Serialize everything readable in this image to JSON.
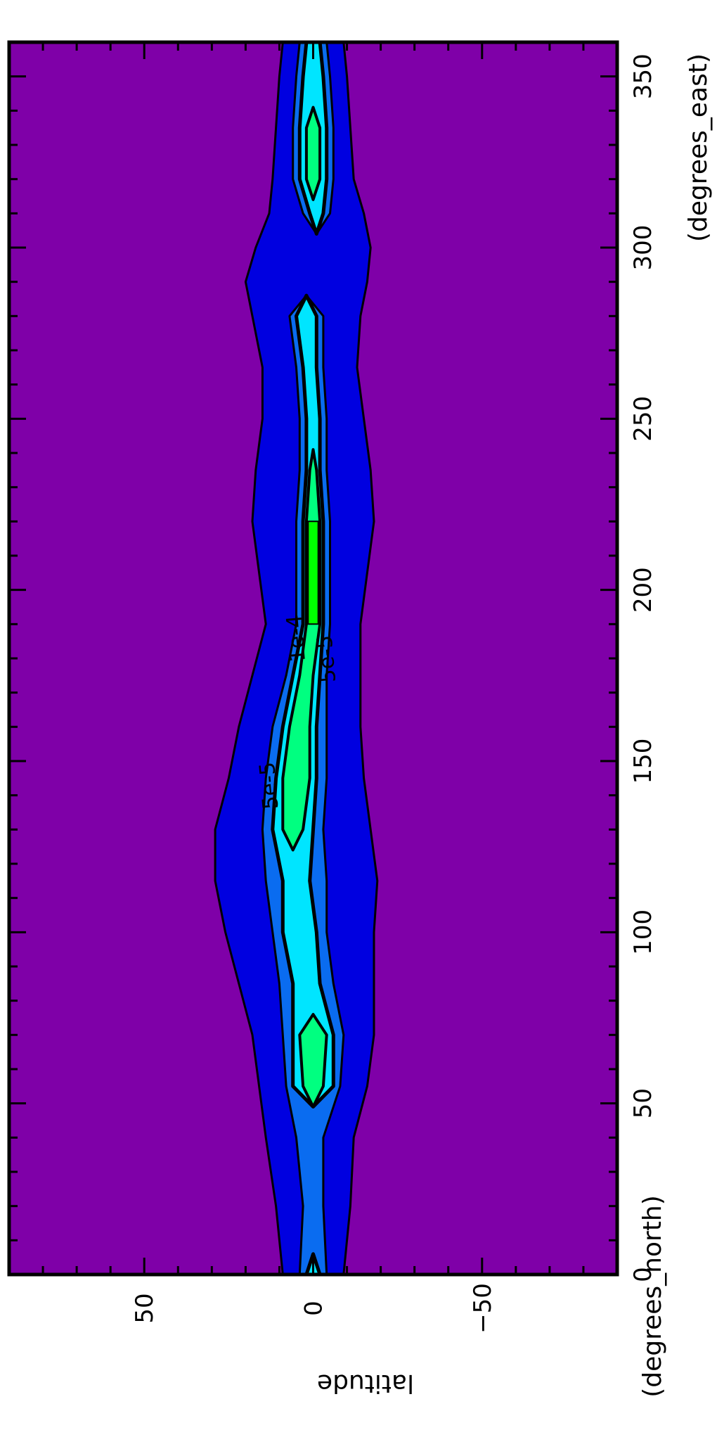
{
  "chart_data": {
    "type": "heatmap",
    "subtype": "filled-contour",
    "orientation": "rotated-90-clockwise",
    "x_axis": {
      "label": "latitude",
      "units": "(degrees_north)",
      "range": [
        -90,
        90
      ],
      "ticks": [
        50,
        0,
        -50
      ],
      "tick_labels": [
        "50",
        "0",
        "−50"
      ]
    },
    "y_axis": {
      "label": "",
      "units": "(degrees_east)",
      "range": [
        0,
        360
      ],
      "ticks": [
        0,
        50,
        100,
        150,
        200,
        250,
        300,
        350
      ],
      "tick_labels": [
        "0",
        "50",
        "100",
        "150",
        "200",
        "250",
        "300",
        "350"
      ]
    },
    "contour_levels": [
      "1e-5",
      "5e-5",
      "1e-4"
    ],
    "contour_labels": [
      "5e-5",
      "1e-4",
      "5e-5"
    ],
    "fill_colors": [
      "#7f00a8",
      "#0000e0",
      "#0a6cf0",
      "#00e5ff",
      "#00ff80",
      "#00ff00"
    ],
    "colors": {
      "background_field": "#7f00a8",
      "low": "#0000e0",
      "mid_low": "#0a6cf0",
      "mid": "#00e5ff",
      "mid_high": "#00ff80",
      "high": "#00ff00",
      "contour_line": "#000000"
    },
    "series": [
      {
        "name": "",
        "lon": [
          0,
          20,
          40,
          55,
          70,
          85,
          100,
          115,
          130,
          145,
          160,
          175,
          190,
          205,
          220,
          235,
          250,
          265,
          280,
          290,
          300,
          310,
          320,
          335,
          350,
          360
        ],
        "center_lat": [
          0,
          0,
          1,
          0,
          0,
          2,
          4,
          5,
          6,
          5,
          4,
          2,
          0,
          0,
          0,
          0,
          0,
          1,
          2,
          2,
          0,
          -1,
          0,
          0,
          0,
          0
        ],
        "halfwidth_low": [
          9,
          11,
          13,
          16,
          18,
          20,
          22,
          24,
          23,
          20,
          18,
          16,
          14,
          16,
          18,
          17,
          15,
          14,
          16,
          18,
          17,
          14,
          12,
          11,
          10,
          9
        ],
        "halfwidth_mid": [
          4,
          3,
          4,
          8,
          9,
          8,
          8,
          9,
          9,
          9,
          8,
          6,
          5,
          5,
          5,
          4,
          4,
          4,
          5,
          0,
          0,
          4,
          6,
          6,
          5,
          4
        ],
        "halfwidth_high": [
          2,
          0,
          0,
          6,
          6,
          4,
          5,
          4,
          6,
          6,
          5,
          4,
          3,
          3,
          3,
          2,
          2,
          2,
          3,
          0,
          0,
          2,
          4,
          4,
          3,
          2
        ],
        "halfwidth_peak": [
          0,
          0,
          0,
          3,
          4,
          0,
          0,
          0,
          3,
          4,
          3,
          2,
          2,
          2,
          2,
          1,
          0,
          0,
          0,
          0,
          0,
          0,
          2,
          2,
          0,
          0
        ]
      }
    ]
  }
}
